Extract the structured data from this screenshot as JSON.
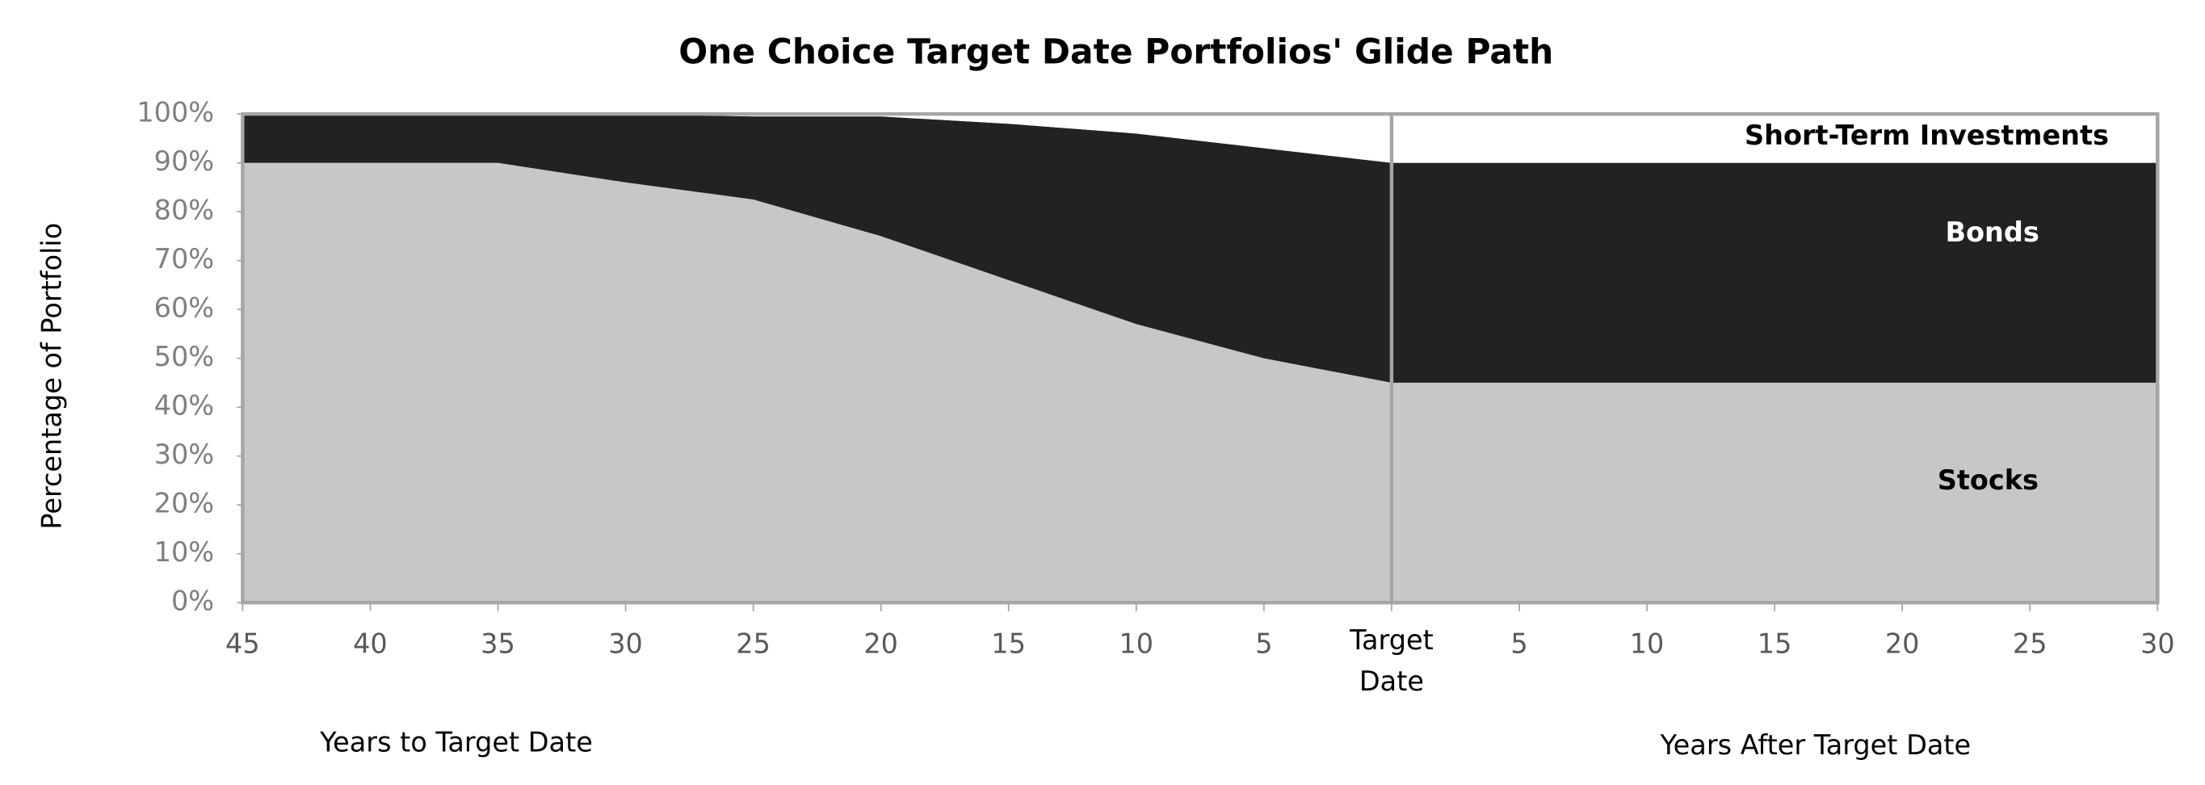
{
  "chart_data": {
    "type": "area",
    "title": "One Choice Target Date Portfolios' Glide Path",
    "y_label": "Percentage of Portfolio",
    "x_labels": [
      "Years to Target Date",
      "Years After Target Date"
    ],
    "annotations": [
      "Short-Term Investments",
      "Bonds",
      "Stocks"
    ],
    "categories": [
      "45",
      "40",
      "35",
      "30",
      "25",
      "20",
      "15",
      "10",
      "5",
      "Target Date",
      "5",
      "10",
      "15",
      "20",
      "25",
      "30"
    ],
    "series": [
      {
        "name": "Stocks",
        "color": "#c8c6c8",
        "values": [
          90,
          90,
          90,
          86,
          82.5,
          75,
          66,
          57,
          50,
          45,
          45,
          45,
          45,
          45,
          45,
          45
        ]
      },
      {
        "name": "Bonds",
        "color": "#222222",
        "values": [
          10,
          10,
          10,
          14,
          17,
          24.5,
          32,
          39,
          43,
          45,
          45,
          45,
          45,
          45,
          45,
          45
        ]
      },
      {
        "name": "Short-Term Investments",
        "color": "#ffffff",
        "values": [
          0,
          0,
          0,
          0,
          0.5,
          0.5,
          2,
          4,
          7,
          10,
          10,
          10,
          10,
          10,
          10,
          10
        ]
      }
    ],
    "ylim": [
      0,
      100
    ],
    "yticks": [
      {
        "value": 0,
        "label": "0%"
      },
      {
        "value": 10,
        "label": "10%"
      },
      {
        "value": 20,
        "label": "20%"
      },
      {
        "value": 30,
        "label": "30%"
      },
      {
        "value": 40,
        "label": "40%"
      },
      {
        "value": 50,
        "label": "50%"
      },
      {
        "value": 60,
        "label": "60%"
      },
      {
        "value": 70,
        "label": "70%"
      },
      {
        "value": 80,
        "label": "80%"
      },
      {
        "value": 90,
        "label": "90%"
      },
      {
        "value": 100,
        "label": "100%"
      }
    ]
  }
}
